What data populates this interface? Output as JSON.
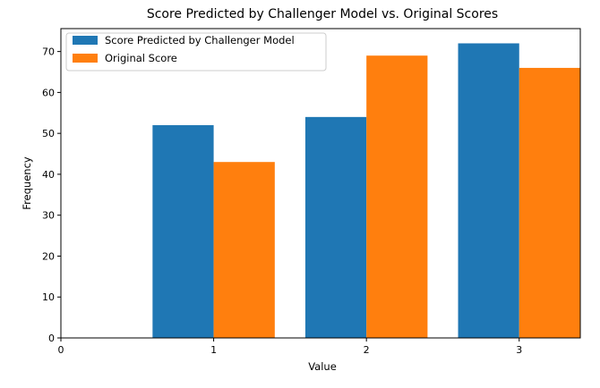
{
  "chart_data": {
    "type": "bar",
    "title": "Score Predicted by Challenger Model vs. Original Scores",
    "xlabel": "Value",
    "ylabel": "Frequency",
    "x_ticks": [
      0,
      1,
      2,
      3
    ],
    "y_ticks": [
      0,
      10,
      20,
      30,
      40,
      50,
      60,
      70
    ],
    "xlim": [
      0,
      3.4
    ],
    "ylim": [
      0,
      75.6
    ],
    "categories": [
      1,
      2,
      3
    ],
    "bar_width": 0.4,
    "series": [
      {
        "name": "Score Predicted by Challenger Model",
        "color": "#1f77b4",
        "offset": -0.2,
        "values": [
          52,
          54,
          72
        ]
      },
      {
        "name": "Original Score",
        "color": "#ff7f0e",
        "offset": 0.2,
        "values": [
          43,
          69,
          66
        ]
      }
    ],
    "legend_position": "upper left",
    "grid": false
  }
}
